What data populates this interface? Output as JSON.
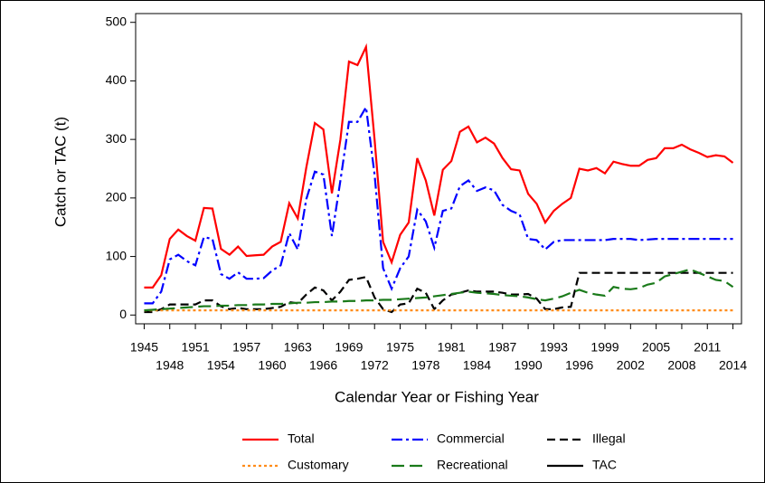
{
  "chart_data": {
    "type": "line",
    "x_label": "Calendar Year or Fishing Year",
    "y_label": "Catch or TAC (t)",
    "x": [
      1945,
      1946,
      1947,
      1948,
      1949,
      1950,
      1951,
      1952,
      1953,
      1954,
      1955,
      1956,
      1957,
      1958,
      1959,
      1960,
      1961,
      1962,
      1963,
      1964,
      1965,
      1966,
      1967,
      1968,
      1969,
      1970,
      1971,
      1972,
      1973,
      1974,
      1975,
      1976,
      1977,
      1978,
      1979,
      1980,
      1981,
      1982,
      1983,
      1984,
      1985,
      1986,
      1987,
      1988,
      1989,
      1990,
      1991,
      1992,
      1993,
      1994,
      1995,
      1996,
      1997,
      1998,
      1999,
      2000,
      2001,
      2002,
      2003,
      2004,
      2005,
      2006,
      2007,
      2008,
      2009,
      2010,
      2011,
      2012,
      2013,
      2014
    ],
    "xlim": [
      1944,
      2015
    ],
    "xticks": [
      1945,
      1948,
      1951,
      1954,
      1957,
      1960,
      1963,
      1966,
      1969,
      1972,
      1975,
      1978,
      1981,
      1984,
      1987,
      1990,
      1993,
      1996,
      1999,
      2002,
      2005,
      2008,
      2011,
      2014
    ],
    "ylim": [
      -15,
      515
    ],
    "yticks": [
      0,
      100,
      200,
      300,
      400,
      500
    ],
    "grid": false,
    "legend": "bottom",
    "series": [
      {
        "name": "Total",
        "color": "#ff0000",
        "dash": "solid",
        "values": [
          47,
          47,
          68,
          130,
          146,
          135,
          127,
          183,
          182,
          113,
          103,
          117,
          101,
          102,
          103,
          117,
          125,
          191,
          165,
          252,
          328,
          317,
          208,
          300,
          433,
          427,
          458,
          300,
          125,
          90,
          137,
          158,
          268,
          230,
          170,
          248,
          263,
          313,
          322,
          295,
          303,
          293,
          268,
          249,
          247,
          207,
          190,
          158,
          178,
          190,
          200,
          250,
          247,
          251,
          242,
          262,
          258,
          255,
          255,
          265,
          268,
          285,
          285,
          291,
          283,
          277,
          270,
          273,
          271,
          260
        ]
      },
      {
        "name": "Commercial",
        "color": "#0000ff",
        "dash": "dashdot",
        "values": [
          20,
          20,
          40,
          95,
          103,
          92,
          85,
          133,
          130,
          70,
          62,
          73,
          62,
          62,
          63,
          76,
          85,
          140,
          112,
          198,
          245,
          240,
          135,
          230,
          330,
          330,
          355,
          240,
          80,
          45,
          80,
          100,
          180,
          160,
          115,
          178,
          182,
          220,
          230,
          212,
          218,
          213,
          188,
          178,
          172,
          130,
          128,
          112,
          125,
          128,
          128,
          128,
          128,
          128,
          128,
          130,
          130,
          130,
          128,
          129,
          130,
          130,
          130,
          130,
          130,
          130,
          130,
          130,
          130,
          130
        ]
      },
      {
        "name": "Illegal",
        "color": "#000000",
        "dash": "dashed",
        "values": [
          5,
          5,
          10,
          18,
          18,
          18,
          18,
          25,
          25,
          15,
          10,
          12,
          10,
          10,
          10,
          12,
          14,
          22,
          20,
          35,
          47,
          42,
          25,
          40,
          60,
          62,
          65,
          30,
          10,
          5,
          18,
          20,
          45,
          38,
          10,
          25,
          35,
          38,
          42,
          40,
          40,
          40,
          38,
          35,
          35,
          36,
          28,
          10,
          10,
          13,
          14,
          72,
          72,
          72,
          72,
          72,
          72,
          72,
          72,
          72,
          72,
          72,
          72,
          72,
          72,
          72,
          72,
          72,
          72,
          72
        ]
      },
      {
        "name": "Customary",
        "color": "#ff8c1a",
        "dash": "dotted",
        "values": [
          8,
          8,
          8,
          8,
          8,
          8,
          8,
          8,
          8,
          8,
          8,
          8,
          8,
          8,
          8,
          8,
          8,
          8,
          8,
          8,
          8,
          8,
          8,
          8,
          8,
          8,
          8,
          8,
          8,
          8,
          8,
          8,
          8,
          8,
          8,
          8,
          8,
          8,
          8,
          8,
          8,
          8,
          8,
          8,
          8,
          8,
          8,
          8,
          8,
          8,
          8,
          8,
          8,
          8,
          8,
          8,
          8,
          8,
          8,
          8,
          8,
          8,
          8,
          8,
          8,
          8,
          8,
          8,
          8,
          8
        ]
      },
      {
        "name": "Recreational",
        "color": "#1a7a1a",
        "dash": "longdash",
        "values": [
          8,
          9,
          10,
          11,
          12,
          13,
          14,
          15,
          15,
          16,
          16,
          17,
          17,
          18,
          18,
          19,
          19,
          20,
          21,
          21,
          22,
          22,
          23,
          23,
          24,
          24,
          25,
          25,
          26,
          26,
          27,
          28,
          29,
          30,
          32,
          34,
          36,
          38,
          40,
          38,
          37,
          36,
          34,
          33,
          32,
          30,
          27,
          25,
          28,
          32,
          38,
          43,
          38,
          35,
          33,
          48,
          45,
          44,
          46,
          52,
          55,
          66,
          70,
          74,
          78,
          72,
          66,
          60,
          58,
          48
        ]
      },
      {
        "name": "TAC",
        "color": "#000000",
        "dash": "solid",
        "values": [
          null,
          null,
          null,
          null,
          null,
          null,
          null,
          null,
          null,
          null,
          null,
          null,
          null,
          null,
          null,
          null,
          null,
          null,
          null,
          null,
          null,
          null,
          null,
          null,
          null,
          null,
          null,
          null,
          null,
          null,
          null,
          null,
          null,
          null,
          null,
          null,
          null,
          null,
          null,
          null,
          null,
          null,
          null,
          null,
          null,
          null,
          null,
          null,
          null,
          null,
          null,
          null,
          null,
          null,
          null,
          null,
          null,
          null,
          null,
          null,
          null,
          null,
          null,
          null,
          null,
          null,
          null,
          null,
          null,
          null
        ]
      }
    ]
  }
}
